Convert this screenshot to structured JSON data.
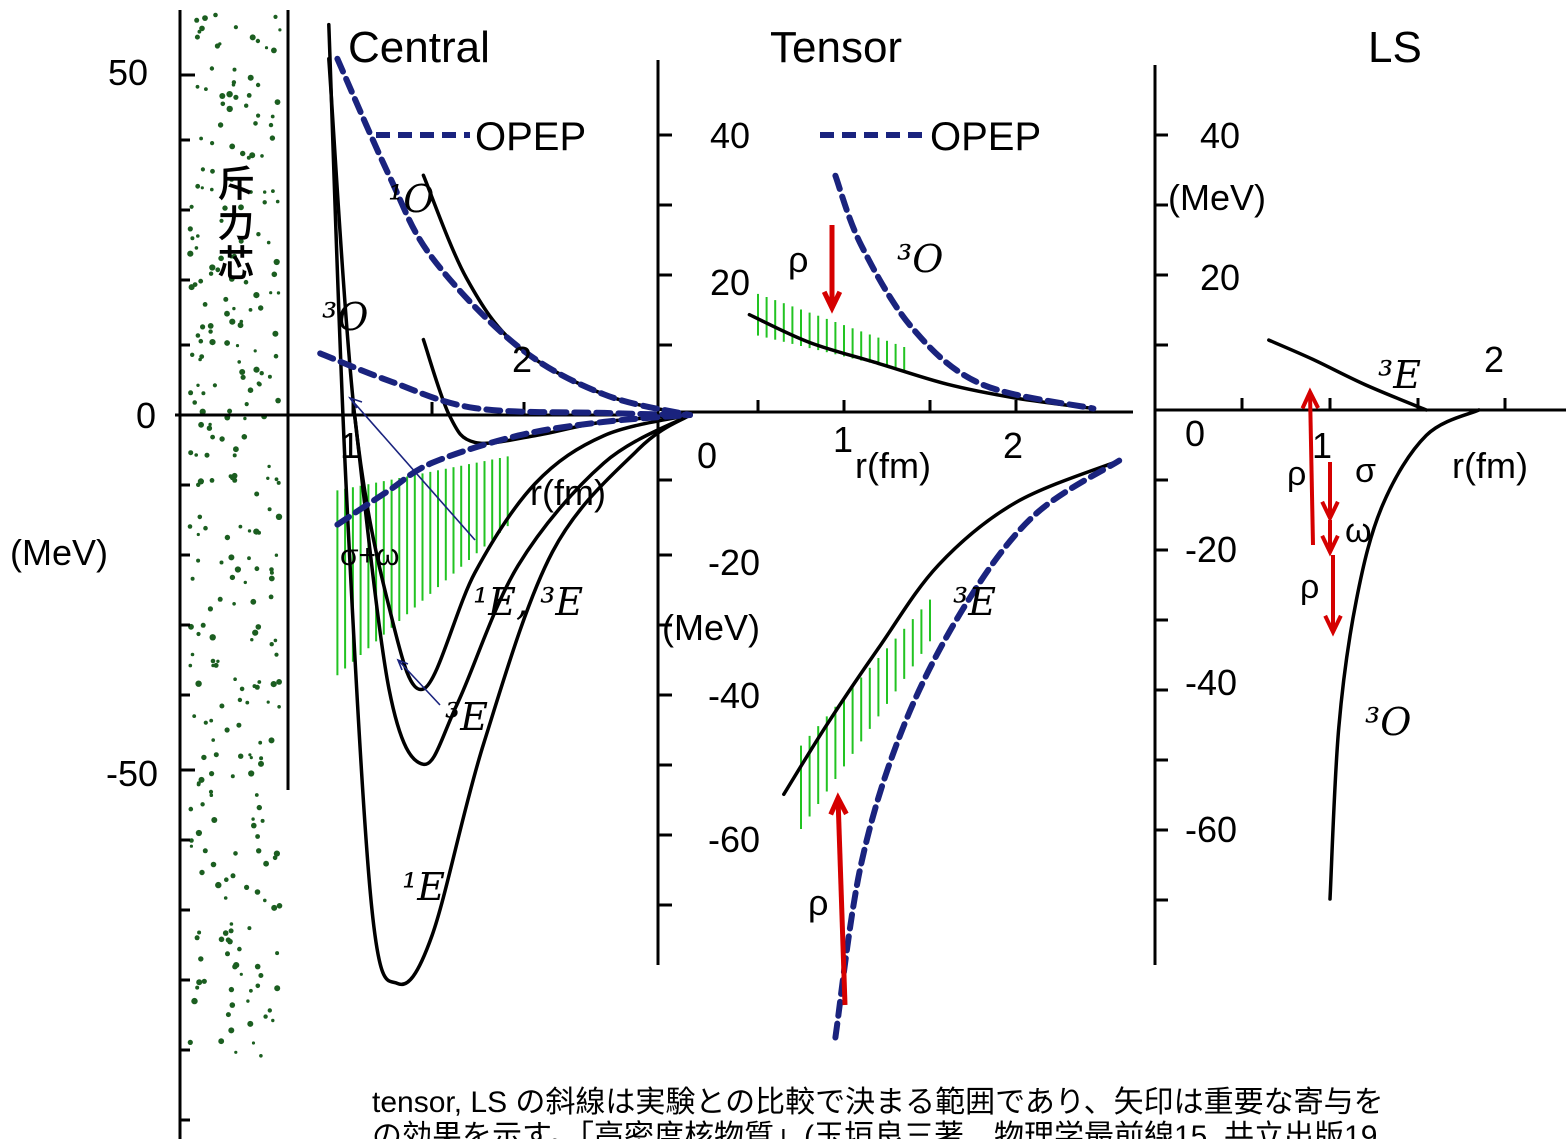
{
  "colors": {
    "axis": "#000000",
    "curve": "#000000",
    "opep": "#1a237e",
    "arrow": "#d50000",
    "band": "#22c322",
    "core_dots": "#1b5e20"
  },
  "chart_data": [
    {
      "type": "line",
      "title": "Central",
      "xlabel": "r(fm)",
      "ylabel": "(MeV)",
      "x_ticks": [
        "1",
        "2"
      ],
      "y_ticks": [
        "50",
        "0",
        "-50"
      ],
      "core_label": "斥力芯",
      "opep_legend": "OPEP",
      "band_annotation": "σ+ω",
      "series": [
        {
          "name": "¹O",
          "style": "solid",
          "points": [
            [
              0.95,
              35
            ],
            [
              1.2,
              20
            ],
            [
              1.5,
              10
            ],
            [
              2.0,
              3
            ],
            [
              2.5,
              0
            ]
          ]
        },
        {
          "name": "³O",
          "style": "solid",
          "points": [
            [
              0.95,
              11
            ],
            [
              1.1,
              0
            ],
            [
              1.25,
              -4
            ],
            [
              1.6,
              -3
            ],
            [
              2.0,
              -1
            ],
            [
              2.5,
              0
            ]
          ]
        },
        {
          "name": "¹E, ³E",
          "style": "solid",
          "points": [
            [
              0.4,
              52
            ],
            [
              0.55,
              0
            ],
            [
              0.75,
              -28
            ],
            [
              0.95,
              -40
            ],
            [
              1.25,
              -23
            ],
            [
              1.6,
              -10
            ],
            [
              2.0,
              -3
            ],
            [
              2.5,
              0
            ]
          ]
        },
        {
          "name": "³E",
          "style": "solid",
          "points": [
            [
              0.55,
              0
            ],
            [
              0.75,
              -40
            ],
            [
              0.95,
              -51
            ],
            [
              1.15,
              -42
            ],
            [
              1.5,
              -22
            ],
            [
              2.0,
              -7
            ],
            [
              2.5,
              0
            ]
          ]
        },
        {
          "name": "¹E",
          "style": "solid",
          "points": [
            [
              0.4,
              57
            ],
            [
              0.5,
              -10
            ],
            [
              0.65,
              -72
            ],
            [
              0.8,
              -83
            ],
            [
              1.0,
              -76
            ],
            [
              1.3,
              -48
            ],
            [
              1.7,
              -20
            ],
            [
              2.2,
              -5
            ],
            [
              2.5,
              0
            ]
          ]
        },
        {
          "name": "OPEP",
          "style": "dashed",
          "points": [
            [
              0.45,
              52
            ],
            [
              0.75,
              35
            ],
            [
              1.0,
              23
            ],
            [
              1.5,
              10
            ],
            [
              2.0,
              3
            ],
            [
              2.5,
              0
            ]
          ]
        },
        {
          "name": "OPEP",
          "style": "dashed",
          "points": [
            [
              0.35,
              9
            ],
            [
              0.75,
              5
            ],
            [
              1.25,
              1
            ],
            [
              2.0,
              0.3
            ],
            [
              2.5,
              0
            ]
          ]
        },
        {
          "name": "OPEP",
          "style": "dashed",
          "points": [
            [
              0.45,
              -16
            ],
            [
              0.75,
              -11
            ],
            [
              1.0,
              -7
            ],
            [
              1.5,
              -3
            ],
            [
              2.0,
              -1
            ],
            [
              2.5,
              0
            ]
          ]
        }
      ]
    },
    {
      "type": "line",
      "title": "Tensor",
      "xlabel": "r(fm)",
      "ylabel": "(MeV)",
      "x_ticks": [
        "0",
        "1",
        "2"
      ],
      "y_ticks": [
        "40",
        "20",
        "-20",
        "-40",
        "-60"
      ],
      "opep_legend": "OPEP",
      "arrow_labels": [
        "ρ",
        "ρ"
      ],
      "series": [
        {
          "name": "³O",
          "style": "solid",
          "points": [
            [
              0.45,
              14
            ],
            [
              0.8,
              10
            ],
            [
              1.2,
              7
            ],
            [
              1.6,
              4
            ],
            [
              2.0,
              2
            ],
            [
              2.45,
              0.5
            ]
          ]
        },
        {
          "name": "³O",
          "style": "dashed",
          "points": [
            [
              0.95,
              34
            ],
            [
              1.1,
              24
            ],
            [
              1.4,
              12
            ],
            [
              1.8,
              4
            ],
            [
              2.45,
              0.5
            ]
          ]
        },
        {
          "name": "³E",
          "style": "solid",
          "points": [
            [
              0.65,
              -55
            ],
            [
              0.9,
              -45
            ],
            [
              1.2,
              -34
            ],
            [
              1.55,
              -22
            ],
            [
              2.0,
              -13
            ],
            [
              2.6,
              -7
            ]
          ]
        },
        {
          "name": "³E",
          "style": "dashed",
          "points": [
            [
              0.95,
              -90
            ],
            [
              1.1,
              -65
            ],
            [
              1.35,
              -45
            ],
            [
              1.7,
              -28
            ],
            [
              2.1,
              -15
            ],
            [
              2.6,
              -7
            ]
          ]
        }
      ]
    },
    {
      "type": "line",
      "title": "LS",
      "xlabel": "r(fm)",
      "ylabel": "(MeV)",
      "x_ticks": [
        "0",
        "1",
        "2"
      ],
      "y_ticks": [
        "40",
        "20",
        "-20",
        "-40",
        "-60"
      ],
      "arrow_labels": [
        "ρ",
        "σ",
        "ω",
        "ρ"
      ],
      "series": [
        {
          "name": "³E",
          "style": "solid",
          "points": [
            [
              0.65,
              11
            ],
            [
              0.9,
              8
            ],
            [
              1.2,
              4
            ],
            [
              1.55,
              0
            ]
          ]
        },
        {
          "name": "³O",
          "style": "solid",
          "points": [
            [
              1.0,
              -77
            ],
            [
              1.05,
              -50
            ],
            [
              1.15,
              -30
            ],
            [
              1.3,
              -15
            ],
            [
              1.55,
              -4
            ],
            [
              1.85,
              0
            ]
          ]
        }
      ]
    }
  ],
  "caption": {
    "line1": "tensor, LS の斜線は実験との比較で決まる範囲であり、矢印は重要な寄与を",
    "line2": "の効果を示す。「高密度核物質」(玉垣良三著、物理学最前線15, 共立出版19"
  }
}
